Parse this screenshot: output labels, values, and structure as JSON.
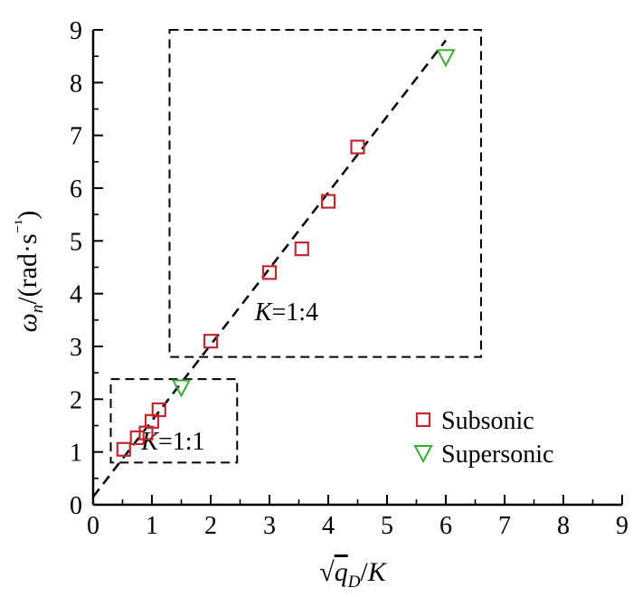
{
  "chart_data": {
    "type": "scatter",
    "title": "",
    "xlabel": "√q_D/K",
    "ylabel": "ωn/(rad·s⁻¹)",
    "xlim": [
      0,
      9
    ],
    "ylim": [
      0,
      9
    ],
    "xticks": [
      "0",
      "1",
      "2",
      "3",
      "4",
      "5",
      "6",
      "7",
      "8",
      "9"
    ],
    "yticks": [
      "0",
      "1",
      "2",
      "3",
      "4",
      "5",
      "6",
      "7",
      "8",
      "9"
    ],
    "grid": false,
    "legend_position": "right-middle",
    "series": [
      {
        "name": "Subsonic",
        "marker": "square",
        "color": "#c0282d",
        "points": [
          {
            "x": 0.52,
            "y": 1.05
          },
          {
            "x": 0.75,
            "y": 1.27
          },
          {
            "x": 0.9,
            "y": 1.36
          },
          {
            "x": 1.0,
            "y": 1.58
          },
          {
            "x": 1.12,
            "y": 1.8
          },
          {
            "x": 2.0,
            "y": 3.1
          },
          {
            "x": 3.0,
            "y": 4.4
          },
          {
            "x": 3.55,
            "y": 4.85
          },
          {
            "x": 4.0,
            "y": 5.75
          },
          {
            "x": 4.5,
            "y": 6.78
          }
        ]
      },
      {
        "name": "Supersonic",
        "marker": "triangle-down",
        "color": "#3aaa35",
        "points": [
          {
            "x": 1.5,
            "y": 2.22
          },
          {
            "x": 6.0,
            "y": 8.48
          }
        ]
      }
    ],
    "fit_line": {
      "style": "dashed",
      "x": [
        0,
        6
      ],
      "y": [
        0.15,
        8.8
      ]
    },
    "regions": [
      {
        "label_var": "K",
        "label_value": "=1:1",
        "x_range": [
          0.3,
          2.45
        ],
        "y_range": [
          0.8,
          2.38
        ]
      },
      {
        "label_var": "K",
        "label_value": "=1:4",
        "x_range": [
          1.3,
          6.6
        ],
        "y_range": [
          2.8,
          9.0
        ]
      }
    ]
  }
}
